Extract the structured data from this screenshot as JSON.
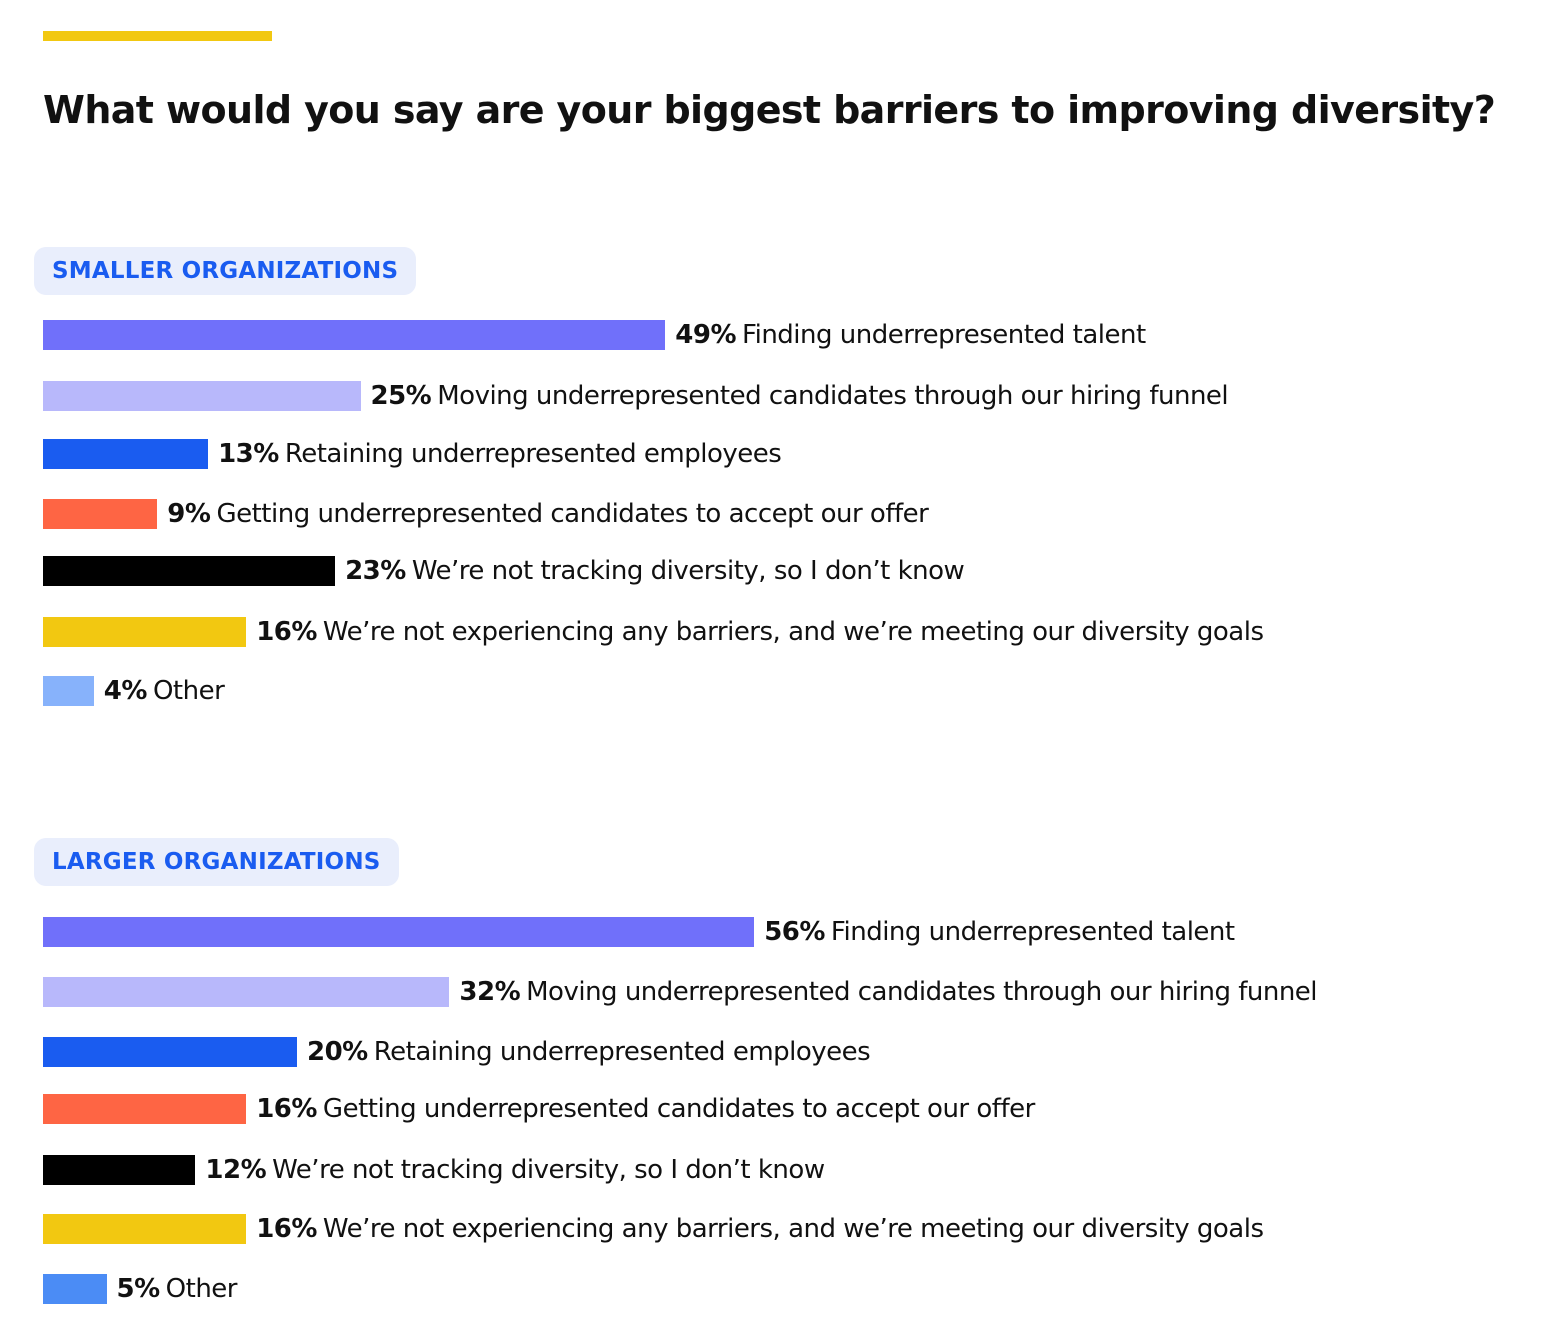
{
  "title": "What would you say are your biggest barriers to improving diversity?",
  "colors": {
    "accent_line": "#f2c811",
    "section_label_text": "#1a5cf0",
    "section_label_bg": "#e9eefc"
  },
  "chart_data": [
    {
      "type": "bar",
      "orientation": "horizontal",
      "section_label": "SMALLER ORGANIZATIONS",
      "value_suffix": "%",
      "categories": [
        "Finding underrepresented talent",
        "Moving underrepresented candidates through our hiring funnel",
        "Retaining underrepresented employees",
        "Getting underrepresented candidates to accept our offer",
        "We’re not tracking diversity, so I don’t know",
        "We’re not experiencing any barriers, and we’re meeting our diversity goals",
        "Other"
      ],
      "values": [
        49,
        25,
        13,
        9,
        23,
        16,
        4
      ],
      "bar_colors": [
        "#7070fa",
        "#b8b8fb",
        "#1a5cf0",
        "#fe6544",
        "#000000",
        "#f2c811",
        "#87b2fb"
      ],
      "xlim": [
        0,
        100
      ],
      "grid": false,
      "legend": "none"
    },
    {
      "type": "bar",
      "orientation": "horizontal",
      "section_label": "LARGER ORGANIZATIONS",
      "value_suffix": "%",
      "categories": [
        "Finding underrepresented talent",
        "Moving underrepresented candidates through our hiring funnel",
        "Retaining underrepresented employees",
        "Getting underrepresented candidates to accept our offer",
        "We’re not tracking diversity, so I don’t know",
        "We’re not experiencing any barriers, and we’re meeting our diversity goals",
        "Other"
      ],
      "values": [
        56,
        32,
        20,
        16,
        12,
        16,
        5
      ],
      "bar_colors": [
        "#7070fa",
        "#b8b8fb",
        "#1a5cf0",
        "#fe6544",
        "#000000",
        "#f2c811",
        "#4b8cf5"
      ],
      "xlim": [
        0,
        100
      ],
      "grid": false,
      "legend": "none"
    }
  ]
}
